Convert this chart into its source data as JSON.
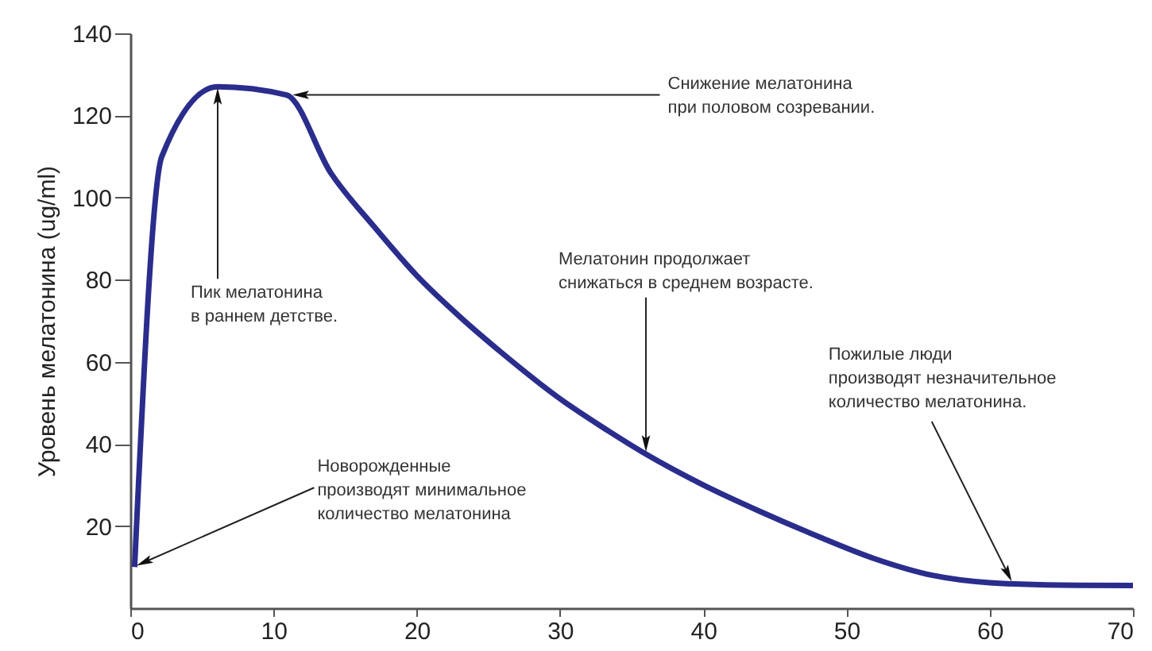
{
  "chart_data": {
    "type": "line",
    "ylabel": "Уровень мелатонина (ug/ml)",
    "x": [
      0.3,
      2.2,
      6.1,
      10.9,
      14,
      17,
      20,
      23,
      26,
      30,
      33,
      36,
      40,
      44,
      48,
      52,
      56,
      60,
      65,
      70
    ],
    "series": [
      {
        "color": "#2a2d8c",
        "values": [
          10,
          110,
          127,
          125,
          106,
          93,
          81,
          71,
          62,
          51,
          44,
          37.5,
          30,
          23.5,
          17.5,
          12,
          8,
          6.2,
          5.6,
          5.5
        ]
      }
    ],
    "xlim": [
      0,
      70
    ],
    "ylim": [
      0,
      140
    ],
    "xticks": [
      0,
      10,
      20,
      30,
      40,
      50,
      60,
      70
    ],
    "yticks": [
      20,
      40,
      60,
      80,
      100,
      120,
      140
    ],
    "grid": false,
    "marker": "none",
    "line_style": "solid",
    "annotations": [
      {
        "text": "Новорожденные\nпроизводят минимальное\nколичество мелатонина",
        "x": 0.3,
        "y": 10
      },
      {
        "text": "Пик мелатонина\nв раннем детстве.",
        "x": 6.1,
        "y": 127
      },
      {
        "text": "Снижение мелатонина\nпри половом созревании.",
        "x": 10.9,
        "y": 125
      },
      {
        "text": "Мелатонин продолжает\nснижаться в среднем возрасте.",
        "x": 36,
        "y": 37
      },
      {
        "text": "Пожилые люди\nпроизводят незначительное\nколичество мелатонина.",
        "x": 61.5,
        "y": 6
      }
    ]
  }
}
